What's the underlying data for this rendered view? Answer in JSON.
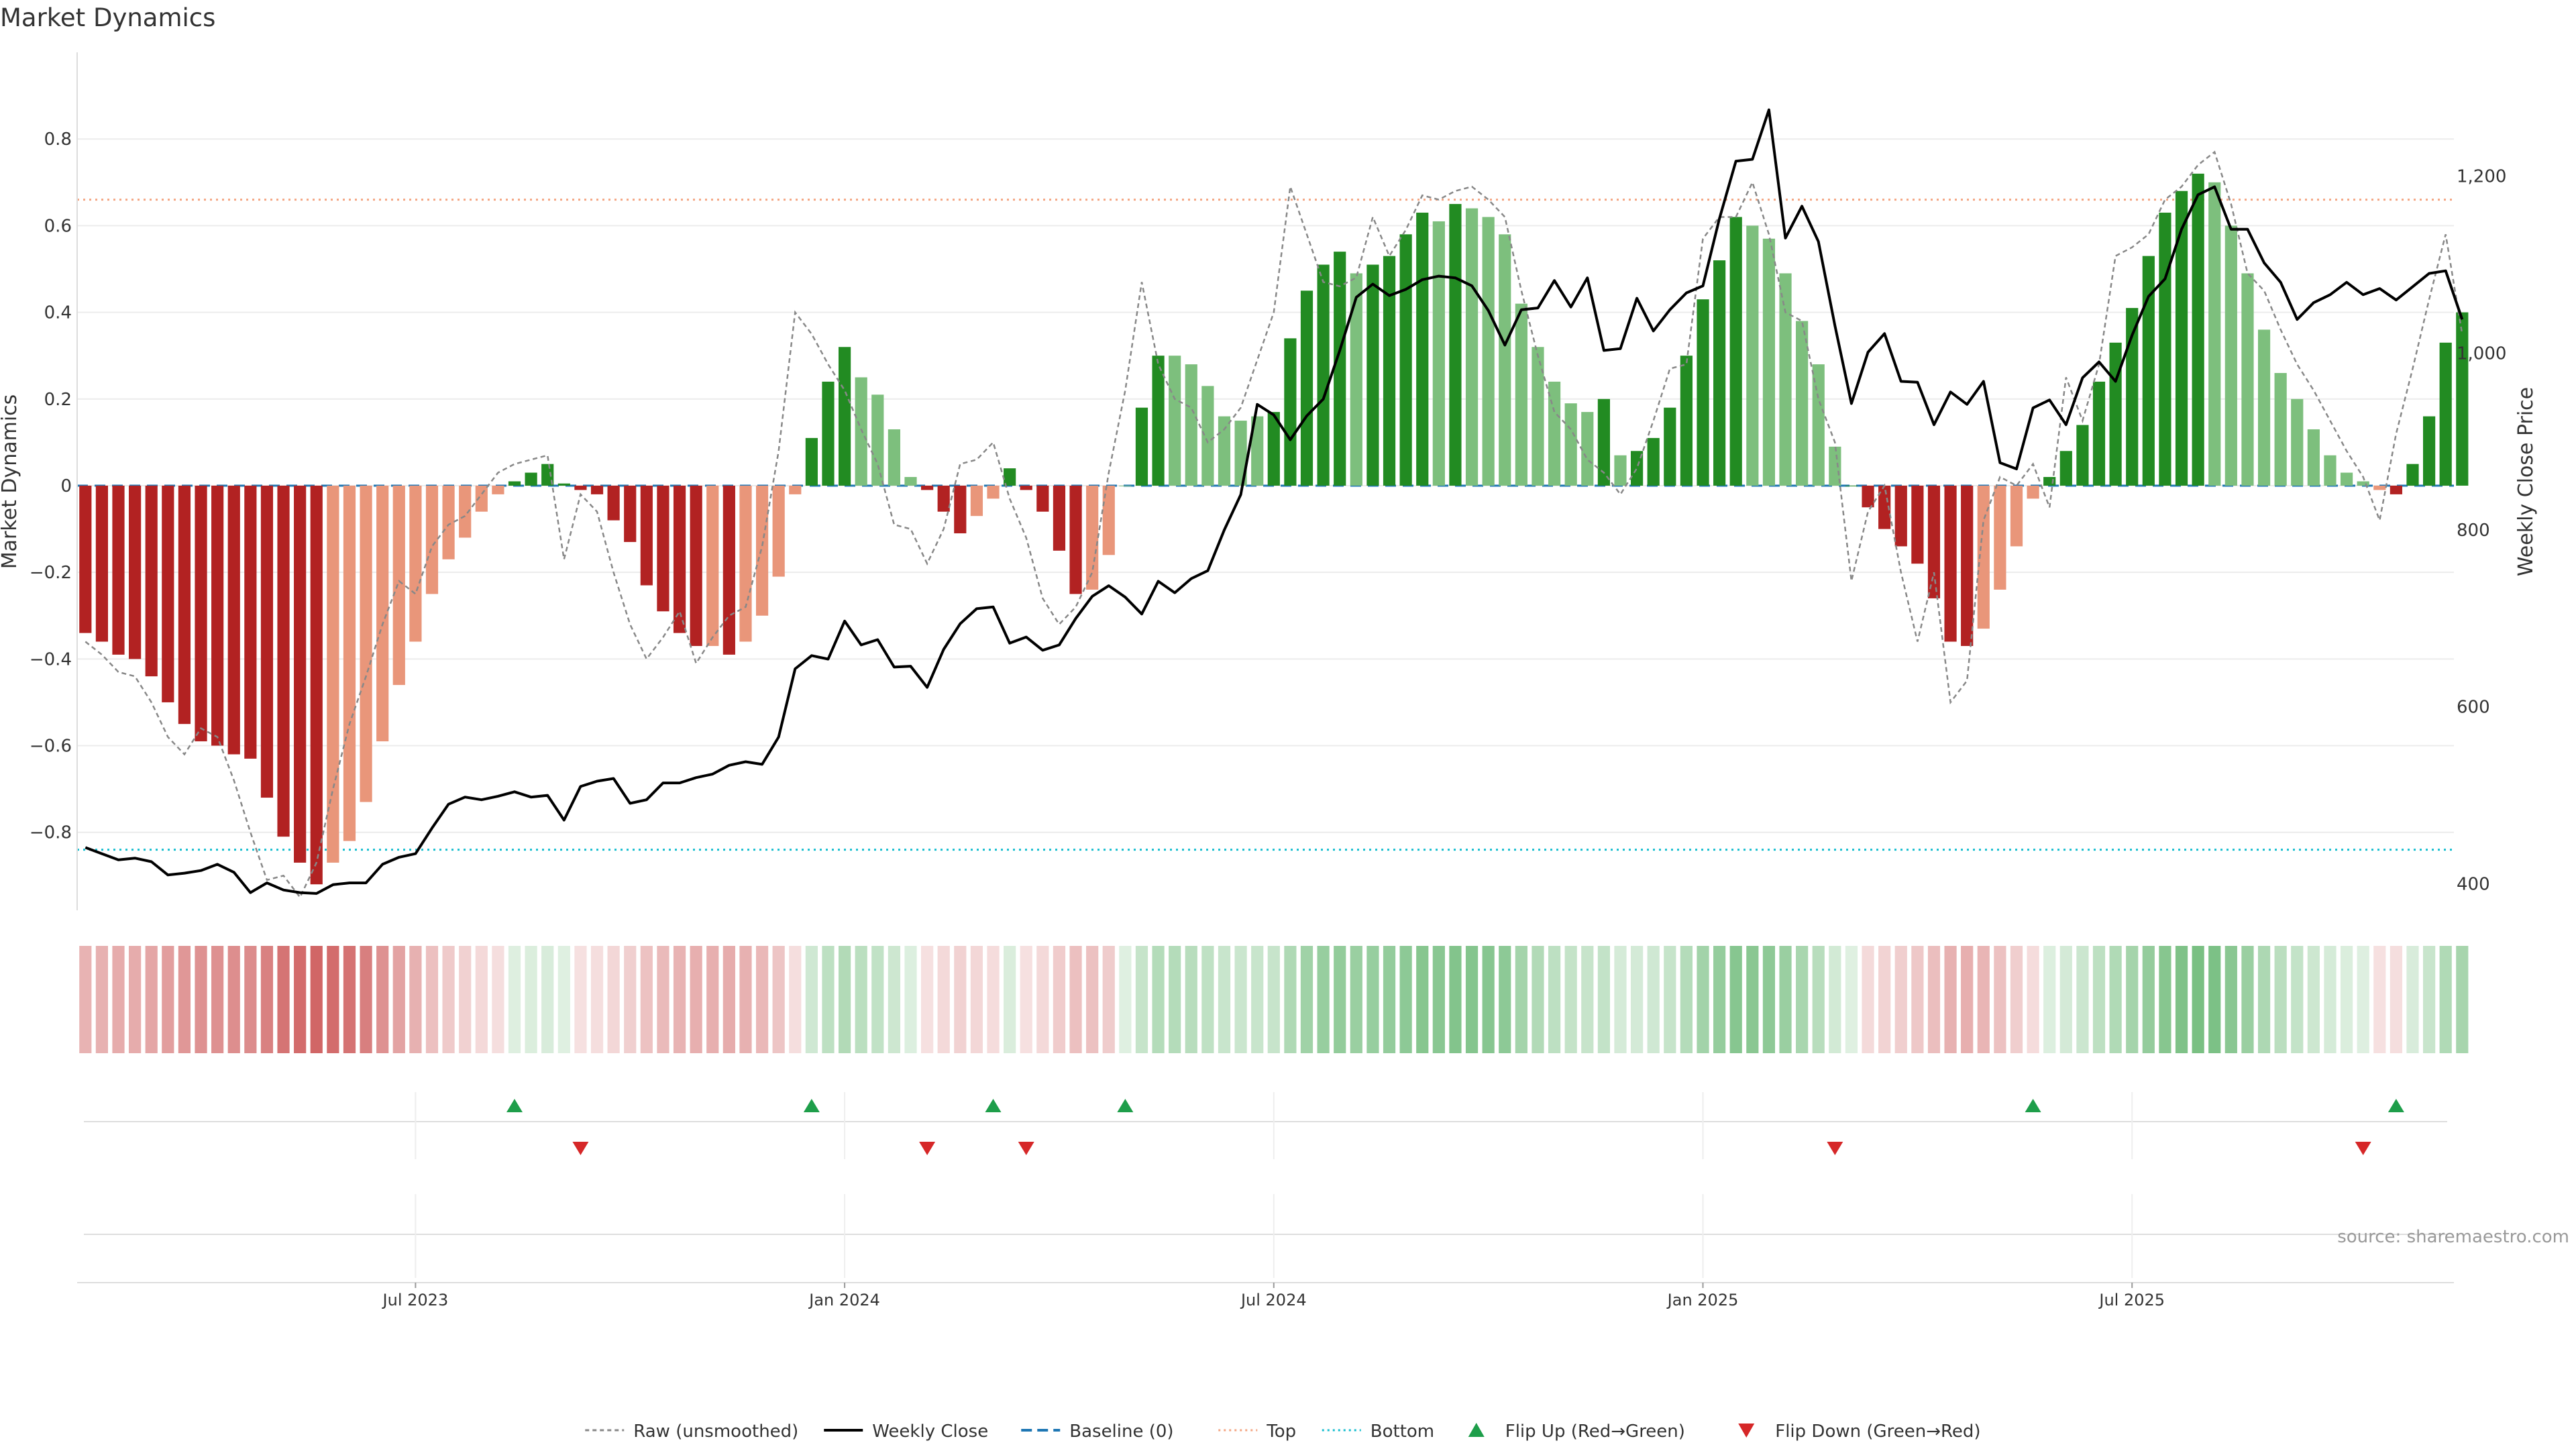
{
  "title": "Market Dynamics",
  "source": "source: sharemaestro.com",
  "colors": {
    "green_strong": "#228B22",
    "green_light": "#7DBF7D",
    "red_strong": "#B22222",
    "red_light": "#E9967A",
    "close_line": "#000000",
    "raw_line": "#888888",
    "baseline": "#1F77B4",
    "top_line": "#F4A582",
    "bottom_line": "#17BECF",
    "flip_up": "#1E9E4A",
    "flip_down": "#D62728"
  },
  "legend": [
    {
      "key": "raw",
      "label": "Raw (unsmoothed)"
    },
    {
      "key": "close",
      "label": "Weekly Close"
    },
    {
      "key": "baseline",
      "label": "Baseline (0)"
    },
    {
      "key": "top",
      "label": "Top"
    },
    {
      "key": "bottom",
      "label": "Bottom"
    },
    {
      "key": "flip_up",
      "label": "Flip Up (Red→Green)"
    },
    {
      "key": "flip_down",
      "label": "Flip Down (Green→Red)"
    }
  ],
  "chart_data": {
    "type": "bar",
    "title": "Market Dynamics",
    "ylabel": "Market Dynamics",
    "y2label": "Weekly Close Price",
    "ylim": [
      -0.98,
      1.0
    ],
    "y2lim": [
      370,
      1340
    ],
    "yticks": [
      -0.8,
      -0.6,
      -0.4,
      -0.2,
      0,
      0.2,
      0.4,
      0.6,
      0.8
    ],
    "ytick_labels": [
      "−0.8",
      "−0.6",
      "−0.4",
      "−0.2",
      "0",
      "0.2",
      "0.4",
      "0.6",
      "0.8"
    ],
    "y2ticks": [
      400,
      600,
      800,
      1000,
      1200
    ],
    "y2tick_labels": [
      "400",
      "600",
      "800",
      "1,000",
      "1,200"
    ],
    "xlim": [
      0,
      144
    ],
    "xticks": [
      20.5,
      46.5,
      72.5,
      98.5,
      124.5
    ],
    "xtick_labels": [
      "Jul 2023",
      "Jan 2024",
      "Jul 2024",
      "Jan 2025",
      "Jul 2025"
    ],
    "top_level": 0.66,
    "bottom_level": -0.84,
    "baseline_level": 0,
    "grid": true,
    "legend_position": "bottom-center",
    "dynamics": [
      -0.34,
      -0.36,
      -0.39,
      -0.4,
      -0.44,
      -0.5,
      -0.55,
      -0.59,
      -0.6,
      -0.62,
      -0.63,
      -0.72,
      -0.81,
      -0.87,
      -0.92,
      -0.87,
      -0.82,
      -0.73,
      -0.59,
      -0.46,
      -0.36,
      -0.25,
      -0.17,
      -0.12,
      -0.06,
      -0.02,
      0.01,
      0.03,
      0.05,
      0.005,
      -0.01,
      -0.02,
      -0.08,
      -0.13,
      -0.23,
      -0.29,
      -0.34,
      -0.37,
      -0.37,
      -0.39,
      -0.36,
      -0.3,
      -0.21,
      -0.02,
      0.11,
      0.24,
      0.32,
      0.25,
      0.21,
      0.13,
      0.02,
      -0.01,
      -0.06,
      -0.11,
      -0.07,
      -0.03,
      0.04,
      -0.01,
      -0.06,
      -0.15,
      -0.25,
      -0.24,
      -0.16,
      0.0,
      0.18,
      0.3,
      0.3,
      0.28,
      0.23,
      0.16,
      0.15,
      0.16,
      0.17,
      0.34,
      0.45,
      0.51,
      0.54,
      0.49,
      0.51,
      0.53,
      0.58,
      0.63,
      0.61,
      0.65,
      0.64,
      0.62,
      0.58,
      0.42,
      0.32,
      0.24,
      0.19,
      0.17,
      0.2,
      0.07,
      0.08,
      0.11,
      0.18,
      0.3,
      0.43,
      0.52,
      0.62,
      0.6,
      0.57,
      0.49,
      0.38,
      0.28,
      0.09,
      0.0,
      -0.05,
      -0.1,
      -0.14,
      -0.18,
      -0.26,
      -0.36,
      -0.37,
      -0.33,
      -0.24,
      -0.14,
      -0.03,
      0.02,
      0.08,
      0.14,
      0.24,
      0.33,
      0.41,
      0.53,
      0.63,
      0.68,
      0.72,
      0.7,
      0.6,
      0.49,
      0.36,
      0.26,
      0.2,
      0.13,
      0.07,
      0.03,
      0.01,
      -0.01,
      -0.02,
      0.05,
      0.16,
      0.33,
      0.4
    ],
    "strength": [
      "S",
      "S",
      "S",
      "S",
      "S",
      "S",
      "S",
      "S",
      "S",
      "S",
      "S",
      "S",
      "S",
      "S",
      "S",
      "W",
      "W",
      "W",
      "W",
      "W",
      "W",
      "W",
      "W",
      "W",
      "W",
      "W",
      "S",
      "S",
      "S",
      "S",
      "S",
      "S",
      "S",
      "S",
      "S",
      "S",
      "S",
      "S",
      "W",
      "S",
      "W",
      "W",
      "W",
      "W",
      "S",
      "S",
      "S",
      "W",
      "W",
      "W",
      "W",
      "S",
      "S",
      "S",
      "W",
      "W",
      "S",
      "S",
      "S",
      "S",
      "S",
      "W",
      "W",
      "W",
      "S",
      "S",
      "W",
      "W",
      "W",
      "W",
      "W",
      "W",
      "S",
      "S",
      "S",
      "S",
      "S",
      "W",
      "S",
      "S",
      "S",
      "S",
      "W",
      "S",
      "W",
      "W",
      "W",
      "W",
      "W",
      "W",
      "W",
      "W",
      "S",
      "W",
      "S",
      "S",
      "S",
      "S",
      "S",
      "S",
      "S",
      "W",
      "W",
      "W",
      "W",
      "W",
      "W",
      "S",
      "S",
      "S",
      "S",
      "S",
      "S",
      "S",
      "S",
      "W",
      "W",
      "W",
      "W",
      "S",
      "S",
      "S",
      "S",
      "S",
      "S",
      "S",
      "S",
      "S",
      "S",
      "W",
      "W",
      "W",
      "W",
      "W",
      "W",
      "W",
      "W",
      "W",
      "W",
      "W",
      "S",
      "S",
      "S",
      "S",
      "S"
    ],
    "raw": [
      -0.36,
      -0.39,
      -0.43,
      -0.44,
      -0.5,
      -0.58,
      -0.62,
      -0.56,
      -0.58,
      -0.68,
      -0.8,
      -0.91,
      -0.9,
      -0.95,
      -0.87,
      -0.7,
      -0.55,
      -0.44,
      -0.32,
      -0.22,
      -0.25,
      -0.14,
      -0.09,
      -0.07,
      -0.02,
      0.03,
      0.05,
      0.06,
      0.07,
      -0.17,
      -0.02,
      -0.06,
      -0.2,
      -0.32,
      -0.4,
      -0.35,
      -0.29,
      -0.41,
      -0.35,
      -0.3,
      -0.28,
      -0.14,
      0.08,
      0.4,
      0.35,
      0.28,
      0.22,
      0.13,
      0.05,
      -0.09,
      -0.1,
      -0.18,
      -0.1,
      0.05,
      0.06,
      0.1,
      -0.03,
      -0.12,
      -0.26,
      -0.32,
      -0.28,
      -0.2,
      0.03,
      0.22,
      0.47,
      0.28,
      0.2,
      0.18,
      0.1,
      0.13,
      0.18,
      0.29,
      0.4,
      0.69,
      0.58,
      0.47,
      0.46,
      0.48,
      0.62,
      0.53,
      0.59,
      0.67,
      0.66,
      0.68,
      0.69,
      0.66,
      0.62,
      0.45,
      0.3,
      0.17,
      0.13,
      0.06,
      0.03,
      -0.02,
      0.04,
      0.15,
      0.27,
      0.28,
      0.57,
      0.62,
      0.62,
      0.7,
      0.58,
      0.4,
      0.38,
      0.2,
      0.1,
      -0.22,
      -0.06,
      0.0,
      -0.2,
      -0.36,
      -0.2,
      -0.5,
      -0.45,
      -0.08,
      0.02,
      0.0,
      0.05,
      -0.05,
      0.25,
      0.15,
      0.28,
      0.53,
      0.55,
      0.58,
      0.66,
      0.69,
      0.74,
      0.77,
      0.65,
      0.49,
      0.45,
      0.36,
      0.28,
      0.22,
      0.15,
      0.08,
      0.02,
      -0.08,
      0.12,
      0.27,
      0.43,
      0.58,
      0.35
    ],
    "close": [
      441,
      434,
      427,
      429,
      425,
      410,
      412,
      415,
      422,
      413,
      390,
      401,
      393,
      390,
      389,
      399,
      401,
      401,
      422,
      430,
      434,
      463,
      490,
      498,
      495,
      499,
      504,
      498,
      500,
      472,
      510,
      516,
      519,
      491,
      495,
      514,
      514,
      520,
      524,
      534,
      538,
      535,
      566,
      643,
      658,
      654,
      697,
      670,
      676,
      645,
      646,
      622,
      665,
      694,
      711,
      713,
      672,
      679,
      664,
      670,
      700,
      725,
      737,
      724,
      705,
      742,
      729,
      745,
      754,
      800,
      840,
      942,
      930,
      902,
      929,
      948,
      1003,
      1063,
      1078,
      1065,
      1072,
      1083,
      1087,
      1085,
      1076,
      1048,
      1009,
      1049,
      1051,
      1082,
      1052,
      1085,
      1003,
      1005,
      1062,
      1025,
      1049,
      1068,
      1076,
      1152,
      1217,
      1219,
      1275,
      1130,
      1166,
      1126,
      1031,
      943,
      1001,
      1022,
      968,
      967,
      919,
      956,
      942,
      968,
      876,
      869,
      938,
      947,
      919,
      972,
      990,
      968,
      1020,
      1064,
      1084,
      1140,
      1179,
      1188,
      1140,
      1140,
      1102,
      1080,
      1038,
      1057,
      1066,
      1080,
      1066,
      1073,
      1060,
      1075,
      1090,
      1093,
      1038
    ]
  },
  "heatmap_strip": {
    "note_key": "strip"
  },
  "flips": {
    "up": [
      26,
      44,
      55,
      63,
      118,
      140
    ],
    "down": [
      30,
      51,
      57,
      106,
      138
    ]
  }
}
